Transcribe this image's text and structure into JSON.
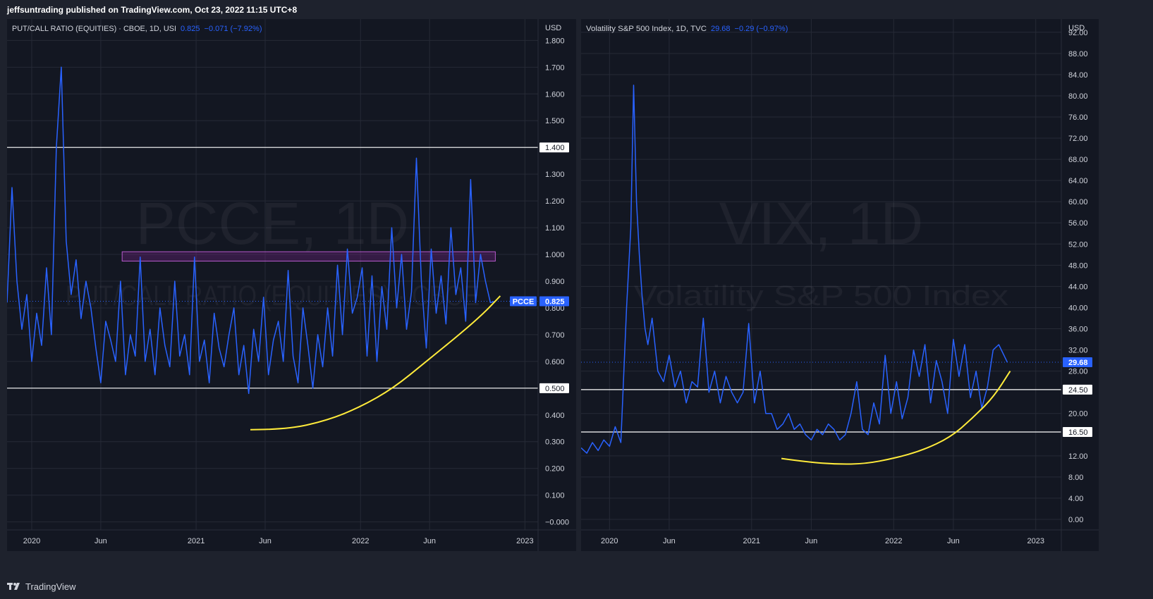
{
  "header": {
    "publisher": "jeffsuntrading published on TradingView.com, Oct 23, 2022 11:15 UTC+8"
  },
  "footer": {
    "brand": "TradingView",
    "logo_icon": "tradingview-logo-icon"
  },
  "colors": {
    "background": "#131722",
    "frame": "#1e222d",
    "series": "#2962ff",
    "level_lines": "#ffffff",
    "curve": "#ffeb3b",
    "zone": "#9c27b0",
    "grid": "#262a36",
    "label_text": "#d1d4dc"
  },
  "chart_data": [
    {
      "type": "line",
      "symbol": "PCCE",
      "title": "PUT/CALL RATIO (EQUITIES) · CBOE, 1D, USI",
      "last_value": "0.825",
      "change": "−0.071 (−7.92%)",
      "watermark_symbol": "PCCE, 1D",
      "watermark_name": "PUT/CALL RATIO (EQUITIES) · CBOE",
      "currency": "USD",
      "ylim": [
        -0.03,
        1.88
      ],
      "y_ticks": [
        "1.800",
        "1.700",
        "1.600",
        "1.500",
        "1.400",
        "1.300",
        "1.200",
        "1.100",
        "1.000",
        "0.900",
        "0.800",
        "0.700",
        "0.600",
        "0.500",
        "0.400",
        "0.300",
        "0.200",
        "0.100",
        "−0.000"
      ],
      "y_tick_values": [
        1.8,
        1.7,
        1.6,
        1.5,
        1.4,
        1.3,
        1.2,
        1.1,
        1.0,
        0.9,
        0.8,
        0.7,
        0.6,
        0.5,
        0.4,
        0.3,
        0.2,
        0.1,
        0.0
      ],
      "x_ticks": [
        "2020",
        "Jun",
        "2021",
        "Jun",
        "2022",
        "Jun",
        "2023"
      ],
      "x_tick_values": [
        2020.0,
        2020.42,
        2021.0,
        2021.42,
        2022.0,
        2022.42,
        2023.0
      ],
      "xlim": [
        2019.85,
        2023.08
      ],
      "x": [
        2019.85,
        2019.88,
        2019.91,
        2019.94,
        2019.97,
        2020.0,
        2020.03,
        2020.06,
        2020.09,
        2020.12,
        2020.15,
        2020.18,
        2020.21,
        2020.24,
        2020.27,
        2020.3,
        2020.33,
        2020.36,
        2020.39,
        2020.42,
        2020.45,
        2020.48,
        2020.51,
        2020.54,
        2020.57,
        2020.6,
        2020.63,
        2020.66,
        2020.69,
        2020.72,
        2020.75,
        2020.78,
        2020.81,
        2020.84,
        2020.87,
        2020.9,
        2020.93,
        2020.96,
        2020.99,
        2021.02,
        2021.05,
        2021.08,
        2021.11,
        2021.14,
        2021.17,
        2021.2,
        2021.23,
        2021.26,
        2021.29,
        2021.32,
        2021.35,
        2021.38,
        2021.41,
        2021.44,
        2021.47,
        2021.5,
        2021.53,
        2021.56,
        2021.59,
        2021.62,
        2021.65,
        2021.68,
        2021.71,
        2021.74,
        2021.77,
        2021.8,
        2021.83,
        2021.86,
        2021.89,
        2021.92,
        2021.95,
        2021.98,
        2022.01,
        2022.04,
        2022.07,
        2022.1,
        2022.13,
        2022.16,
        2022.19,
        2022.22,
        2022.25,
        2022.28,
        2022.31,
        2022.34,
        2022.37,
        2022.4,
        2022.43,
        2022.46,
        2022.49,
        2022.52,
        2022.55,
        2022.58,
        2022.61,
        2022.64,
        2022.67,
        2022.7,
        2022.73,
        2022.76,
        2022.79,
        2022.82
      ],
      "values": [
        0.82,
        1.25,
        0.9,
        0.72,
        0.85,
        0.6,
        0.78,
        0.66,
        0.95,
        0.7,
        1.4,
        1.7,
        1.05,
        0.85,
        0.98,
        0.76,
        0.9,
        0.8,
        0.65,
        0.52,
        0.75,
        0.68,
        0.6,
        0.9,
        0.55,
        0.7,
        0.62,
        0.99,
        0.6,
        0.72,
        0.55,
        0.8,
        0.66,
        0.58,
        0.9,
        0.62,
        0.7,
        0.55,
        0.99,
        0.6,
        0.68,
        0.52,
        0.78,
        0.65,
        0.58,
        0.7,
        0.8,
        0.55,
        0.66,
        0.48,
        0.72,
        0.6,
        0.84,
        0.55,
        0.68,
        0.75,
        0.6,
        0.94,
        0.62,
        0.52,
        0.8,
        0.66,
        0.5,
        0.7,
        0.58,
        0.8,
        0.62,
        0.96,
        0.7,
        1.02,
        0.78,
        0.84,
        0.95,
        0.62,
        0.92,
        0.6,
        0.88,
        0.72,
        1.1,
        0.8,
        1.0,
        0.72,
        0.86,
        1.36,
        0.9,
        0.65,
        1.02,
        0.78,
        0.92,
        0.74,
        1.1,
        0.85,
        0.95,
        0.75,
        1.28,
        0.82,
        1.0,
        0.9,
        0.82,
        0.825
      ],
      "hlines": [
        {
          "value": 1.4,
          "label": "1.400"
        },
        {
          "value": 0.5,
          "label": "0.500"
        }
      ],
      "zone": {
        "x0": 2020.55,
        "x1": 2022.82,
        "y0": 0.975,
        "y1": 1.01
      },
      "curve": [
        [
          2021.33,
          0.345
        ],
        [
          2021.55,
          0.345
        ],
        [
          2021.8,
          0.38
        ],
        [
          2022.0,
          0.43
        ],
        [
          2022.2,
          0.5
        ],
        [
          2022.4,
          0.6
        ],
        [
          2022.6,
          0.7
        ],
        [
          2022.75,
          0.78
        ],
        [
          2022.85,
          0.845
        ]
      ],
      "price_label": "0.825",
      "price_label_name": "PCCE"
    },
    {
      "type": "line",
      "symbol": "VIX",
      "title": "Volatility S&P 500 Index, 1D, TVC",
      "last_value": "29.68",
      "change": "−0.29 (−0.97%)",
      "watermark_symbol": "VIX, 1D",
      "watermark_name": "Volatility S&P 500 Index",
      "currency": "USD",
      "ylim": [
        -2.0,
        94.5
      ],
      "y_ticks": [
        "92.00",
        "88.00",
        "84.00",
        "80.00",
        "76.00",
        "72.00",
        "68.00",
        "64.00",
        "60.00",
        "56.00",
        "52.00",
        "48.00",
        "44.00",
        "40.00",
        "36.00",
        "32.00",
        "28.00",
        "20.00",
        "12.00",
        "8.00",
        "4.00",
        "0.00"
      ],
      "y_tick_values": [
        92,
        88,
        84,
        80,
        76,
        72,
        68,
        64,
        60,
        56,
        52,
        48,
        44,
        40,
        36,
        32,
        28,
        20,
        12,
        8,
        4,
        0
      ],
      "x_ticks": [
        "2020",
        "Jun",
        "2021",
        "Jun",
        "2022",
        "Jun",
        "2023"
      ],
      "x_tick_values": [
        2020.0,
        2020.42,
        2021.0,
        2021.42,
        2022.0,
        2022.42,
        2023.0
      ],
      "xlim": [
        2019.8,
        2023.18
      ],
      "x": [
        2019.8,
        2019.84,
        2019.88,
        2019.92,
        2019.96,
        2020.0,
        2020.04,
        2020.08,
        2020.12,
        2020.15,
        2020.17,
        2020.19,
        2020.21,
        2020.23,
        2020.25,
        2020.27,
        2020.3,
        2020.34,
        2020.38,
        2020.42,
        2020.46,
        2020.5,
        2020.54,
        2020.58,
        2020.62,
        2020.66,
        2020.7,
        2020.74,
        2020.78,
        2020.82,
        2020.86,
        2020.9,
        2020.94,
        2020.98,
        2021.02,
        2021.06,
        2021.1,
        2021.14,
        2021.18,
        2021.22,
        2021.26,
        2021.3,
        2021.34,
        2021.38,
        2021.42,
        2021.46,
        2021.5,
        2021.54,
        2021.58,
        2021.62,
        2021.66,
        2021.7,
        2021.74,
        2021.78,
        2021.82,
        2021.86,
        2021.9,
        2021.94,
        2021.98,
        2022.02,
        2022.06,
        2022.1,
        2022.14,
        2022.18,
        2022.22,
        2022.26,
        2022.3,
        2022.34,
        2022.38,
        2022.42,
        2022.46,
        2022.5,
        2022.54,
        2022.58,
        2022.62,
        2022.66,
        2022.7,
        2022.74,
        2022.8
      ],
      "values": [
        13.5,
        12.5,
        14.5,
        13,
        15,
        13.8,
        17.5,
        14.5,
        40,
        55,
        82,
        60,
        50,
        42,
        36,
        33,
        38,
        28,
        26,
        31,
        25,
        28,
        22,
        26,
        25,
        38,
        24,
        28,
        22,
        27,
        24,
        22,
        24,
        37,
        22,
        28,
        20,
        20,
        17,
        18,
        20,
        17,
        18,
        16,
        15,
        17,
        16,
        18,
        17,
        15,
        16,
        20,
        26,
        17,
        16,
        22,
        18,
        31,
        20,
        26,
        19,
        23,
        32,
        27,
        33,
        22,
        30,
        26,
        20,
        34,
        27,
        33,
        23,
        28,
        21,
        25,
        32,
        33,
        29.68
      ],
      "hlines": [
        {
          "value": 24.5,
          "label": "24.50"
        },
        {
          "value": 16.5,
          "label": "16.50"
        }
      ],
      "curve": [
        [
          2021.21,
          11.5
        ],
        [
          2021.4,
          10.8
        ],
        [
          2021.6,
          10.4
        ],
        [
          2021.8,
          10.5
        ],
        [
          2022.0,
          11.5
        ],
        [
          2022.2,
          13
        ],
        [
          2022.4,
          15.5
        ],
        [
          2022.55,
          19
        ],
        [
          2022.7,
          23
        ],
        [
          2022.82,
          28
        ]
      ],
      "price_label": "29.68"
    }
  ]
}
